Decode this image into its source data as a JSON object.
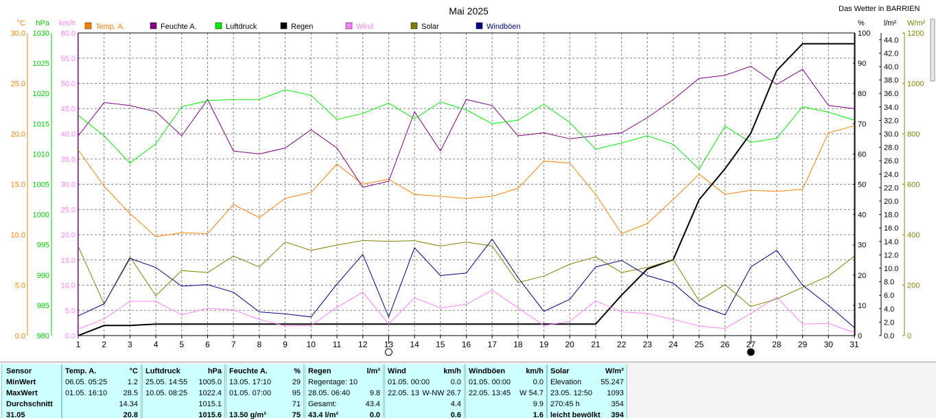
{
  "chart_data": {
    "type": "line",
    "title": "Mai 2025",
    "station": "Das Wetter in BARRIEN",
    "x": [
      1,
      2,
      3,
      4,
      5,
      6,
      7,
      8,
      9,
      10,
      11,
      12,
      13,
      14,
      15,
      16,
      17,
      18,
      19,
      20,
      21,
      22,
      23,
      24,
      25,
      26,
      27,
      28,
      29,
      30,
      31
    ],
    "xlim": [
      1,
      31
    ],
    "axes": {
      "temp": {
        "unit": "°C",
        "range": [
          0,
          30
        ],
        "ticks": [
          "0.0",
          "5.0",
          "10.0",
          "15.0",
          "20.0",
          "25.0",
          "30.0"
        ]
      },
      "press": {
        "unit": "hPa",
        "range": [
          980,
          1030
        ],
        "ticks": [
          "980",
          "985",
          "990",
          "995",
          "1000",
          "1005",
          "1010",
          "1015",
          "1020",
          "1025",
          "1030"
        ]
      },
      "wind": {
        "unit": "km/h",
        "range": [
          0,
          60
        ],
        "ticks": [
          "0.0",
          "5.0",
          "10.0",
          "15.0",
          "20.0",
          "25.0",
          "30.0",
          "35.0",
          "40.0",
          "45.0",
          "50.0",
          "55.0",
          "60.0"
        ]
      },
      "hum": {
        "unit": "%",
        "range": [
          0,
          100
        ],
        "ticks": [
          "0",
          "10",
          "20",
          "30",
          "40",
          "50",
          "60",
          "70",
          "80",
          "90",
          "100"
        ]
      },
      "rain": {
        "unit": "l/m²",
        "range": [
          0,
          45
        ],
        "ticks": [
          "0.0",
          "2.0",
          "4.0",
          "6.0",
          "8.0",
          "10.0",
          "12.0",
          "14.0",
          "16.0",
          "18.0",
          "20.0",
          "22.0",
          "24.0",
          "26.0",
          "28.0",
          "30.0",
          "32.0",
          "34.0",
          "36.0",
          "38.0",
          "40.0",
          "42.0",
          "44.0"
        ]
      },
      "solar": {
        "unit": "W/m²",
        "range": [
          0,
          1200
        ],
        "ticks": [
          "0",
          "200",
          "400",
          "600",
          "800",
          "1000",
          "1200"
        ]
      }
    },
    "grid": true,
    "legend_position": "top",
    "moon_phases": [
      {
        "day": 13,
        "phase": "full"
      },
      {
        "day": 27,
        "phase": "new"
      }
    ],
    "series": [
      {
        "name": "Temp. A.",
        "axis": "temp",
        "color": "#ff8000",
        "values": [
          18.4,
          14.8,
          12.1,
          9.8,
          10.2,
          10.1,
          13.0,
          11.7,
          13.6,
          14.2,
          17.0,
          15.0,
          15.5,
          14.0,
          13.8,
          13.6,
          13.8,
          14.6,
          17.3,
          17.1,
          14.0,
          10.1,
          11.1,
          13.5,
          16.0,
          14.0,
          14.4,
          14.3,
          14.5,
          20.1,
          20.8
        ]
      },
      {
        "name": "Feuchte A.",
        "axis": "hum",
        "color": "#800080",
        "values": [
          66,
          77,
          76,
          74,
          66,
          78,
          61,
          60,
          62,
          68,
          62,
          49,
          51,
          74,
          61,
          78,
          76,
          66,
          67,
          65,
          66,
          67,
          72,
          78,
          85,
          86,
          89,
          83,
          88,
          76,
          75
        ]
      },
      {
        "name": "Luftdruck",
        "axis": "press",
        "color": "#00ee00",
        "values": [
          1016.4,
          1013.0,
          1008.5,
          1011.7,
          1017.8,
          1018.8,
          1019.0,
          1019.0,
          1020.6,
          1019.7,
          1015.7,
          1016.7,
          1018.4,
          1015.8,
          1018.6,
          1017.3,
          1015.0,
          1015.6,
          1018.2,
          1015.2,
          1010.8,
          1011.8,
          1013.0,
          1011.6,
          1007.5,
          1014.6,
          1011.9,
          1012.6,
          1017.8,
          1016.9,
          1015.6
        ]
      },
      {
        "name": "Regen",
        "axis": "rain",
        "color": "#000000",
        "values": [
          0,
          1.5,
          1.5,
          1.7,
          1.7,
          1.7,
          1.7,
          1.7,
          1.7,
          1.7,
          1.7,
          1.7,
          1.7,
          1.7,
          1.7,
          1.7,
          1.7,
          1.7,
          1.7,
          1.7,
          1.7,
          6.0,
          9.9,
          11.3,
          20.2,
          24.8,
          30.1,
          39.4,
          43.4,
          43.4,
          43.4
        ]
      },
      {
        "name": "Wind",
        "axis": "wind",
        "color": "#ff80ff",
        "values": [
          1.3,
          3.3,
          6.8,
          6.8,
          4.1,
          5.4,
          5.1,
          3.2,
          1.9,
          2.0,
          5.6,
          8.6,
          2.3,
          7.5,
          5.5,
          6.2,
          9.0,
          5.5,
          2.0,
          2.8,
          6.9,
          4.7,
          4.4,
          3.2,
          1.9,
          1.4,
          4.4,
          7.6,
          2.3,
          2.4,
          0.6
        ]
      },
      {
        "name": "Solar",
        "axis": "solar",
        "color": "#808000",
        "values": [
          354,
          125,
          312,
          158,
          258,
          250,
          315,
          272,
          371,
          338,
          359,
          377,
          374,
          376,
          355,
          371,
          355,
          210,
          236,
          283,
          312,
          250,
          270,
          301,
          138,
          202,
          115,
          145,
          191,
          236,
          315
        ]
      },
      {
        "name": "Windböen",
        "axis": "wind",
        "color": "#000080",
        "values": [
          3.9,
          6.3,
          15.3,
          13.5,
          9.8,
          10.1,
          8.6,
          4.7,
          4.3,
          3.7,
          10.2,
          16.1,
          3.7,
          17.4,
          11.9,
          12.4,
          19.1,
          11.5,
          4.8,
          7.2,
          13.6,
          14.9,
          11.9,
          10.4,
          6.0,
          4.1,
          13.6,
          16.9,
          10.0,
          6.0,
          1.6
        ]
      }
    ]
  },
  "table": {
    "row_labels": [
      "Sensor",
      "MinWert",
      "MaxWert",
      "Durchschnitt",
      "31.05"
    ],
    "temp": {
      "title": "Temp. A.",
      "unit": "°C",
      "rows": [
        [
          "06.05.  05:25",
          "1.2"
        ],
        [
          "01.05.  16:10",
          "28.5"
        ],
        [
          "",
          "14.34"
        ],
        [
          "",
          "20.8"
        ]
      ]
    },
    "press": {
      "title": "Luftdruck",
      "unit": "hPa",
      "rows": [
        [
          "25.05.  14:55",
          "1005.0"
        ],
        [
          "10.05.  08:25",
          "1022.4"
        ],
        [
          "",
          "1015.1"
        ],
        [
          "",
          "1015.6"
        ]
      ]
    },
    "hum": {
      "title": "Feuchte A.",
      "unit": "%",
      "rows": [
        [
          "13.05.  17:10",
          "29"
        ],
        [
          "01.05.  07:00",
          "95"
        ],
        [
          "",
          "71"
        ],
        [
          "13.50 g/m³",
          "75"
        ]
      ]
    },
    "rain": {
      "title": "Regen",
      "unit": "l/m²",
      "rows": [
        [
          "Regentage: 10",
          ""
        ],
        [
          "28.05.  06:40",
          "9.8"
        ],
        [
          "Gesamt:",
          "43.4"
        ],
        [
          "43.4 l/m²",
          "0.0"
        ]
      ]
    },
    "wind": {
      "title": "Wind",
      "unit": "km/h",
      "rows": [
        [
          "01.05.  00:00",
          "0.0"
        ],
        [
          "22.05.  13",
          "W-NW 26.7"
        ],
        [
          "",
          "4.4"
        ],
        [
          "",
          "0.6"
        ]
      ]
    },
    "gust": {
      "title": "Windböen",
      "unit": "km/h",
      "rows": [
        [
          "01.05.  00:00",
          "0.0"
        ],
        [
          "22.05.  13:45",
          "W 54.7"
        ],
        [
          "",
          "9.9"
        ],
        [
          "",
          "1.6"
        ]
      ]
    },
    "solar": {
      "title": "Solar",
      "unit": "W/m²",
      "rows": [
        [
          "Elevation",
          "55.247"
        ],
        [
          "23.05.  12:50",
          "1093"
        ],
        [
          "270:45 h",
          "354"
        ],
        [
          "leicht bewölkt",
          "394"
        ]
      ]
    }
  }
}
